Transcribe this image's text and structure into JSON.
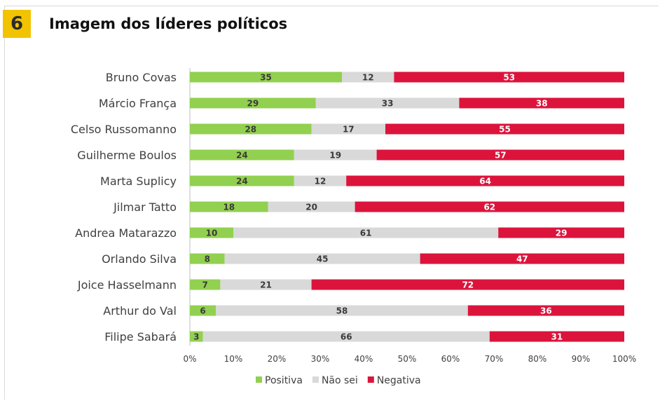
{
  "header": {
    "badge_number": "6",
    "title": "Imagem dos líderes políticos"
  },
  "chart_data": {
    "type": "bar",
    "orientation": "horizontal",
    "stacked": "percent",
    "title": "Imagem dos líderes políticos",
    "categories": [
      "Bruno Covas",
      "Márcio França",
      "Celso Russomanno",
      "Guilherme Boulos",
      "Marta Suplicy",
      "Jilmar Tatto",
      "Andrea Matarazzo",
      "Orlando Silva",
      "Joice Hasselmann",
      "Arthur do Val",
      "Filipe Sabará"
    ],
    "series": [
      {
        "name": "Positiva",
        "color": "#92d050",
        "label_color": "#3a3a3a",
        "values": [
          35,
          29,
          28,
          24,
          24,
          18,
          10,
          8,
          7,
          6,
          3
        ]
      },
      {
        "name": "Não sei",
        "color": "#d9d9d9",
        "label_color": "#3a3a3a",
        "values": [
          12,
          33,
          17,
          19,
          12,
          20,
          61,
          45,
          21,
          58,
          66
        ]
      },
      {
        "name": "Negativa",
        "color": "#dc143c",
        "label_color": "#ffffff",
        "values": [
          53,
          38,
          55,
          57,
          64,
          62,
          29,
          47,
          72,
          36,
          31
        ]
      }
    ],
    "x_ticks": [
      "0%",
      "10%",
      "20%",
      "30%",
      "40%",
      "50%",
      "60%",
      "70%",
      "80%",
      "90%",
      "100%"
    ],
    "xlim": [
      0,
      100
    ],
    "grid": false,
    "legend_position": "bottom"
  }
}
